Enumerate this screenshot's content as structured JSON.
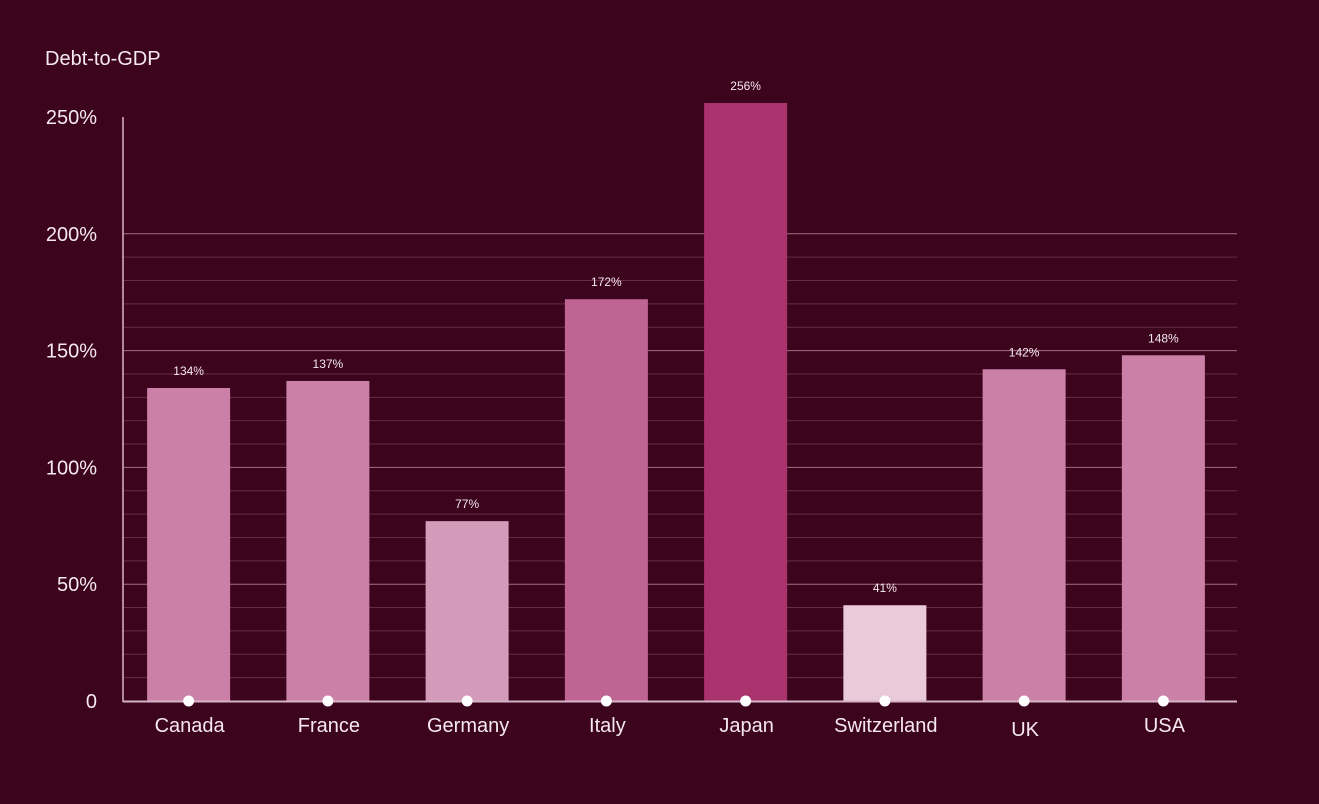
{
  "chart_data": {
    "type": "bar",
    "ylabel": "Debt-to-GDP",
    "xlabel": "",
    "categories": [
      "Canada",
      "France",
      "Germany",
      "Italy",
      "Japan",
      "Switzerland",
      "UK",
      "USA"
    ],
    "values": [
      134,
      137,
      77,
      172,
      256,
      41,
      142,
      148
    ],
    "data_labels": [
      "134%",
      "137%",
      "77%",
      "172%",
      "256%",
      "41%",
      "142%",
      "148%"
    ],
    "bar_colors": [
      "#cb80a8",
      "#cb80a8",
      "#d49ab9",
      "#be6594",
      "#aa336e",
      "#eac9d9",
      "#cb80a8",
      "#cb80a8"
    ],
    "ylim": [
      0,
      250
    ],
    "yticks": [
      0,
      50,
      100,
      150,
      200,
      250
    ],
    "ytick_labels": [
      "0",
      "50%",
      "100%",
      "150%",
      "200%",
      "250%"
    ],
    "minor_grid_step": 10,
    "grid": true,
    "legend": "none",
    "colors": {
      "background": "#3d041e",
      "text": "#f5e9ef",
      "axis": "#d8b4c8",
      "major_grid": "#a0707f",
      "minor_grid": "#6a2a45",
      "marker": "#ffffff"
    }
  }
}
